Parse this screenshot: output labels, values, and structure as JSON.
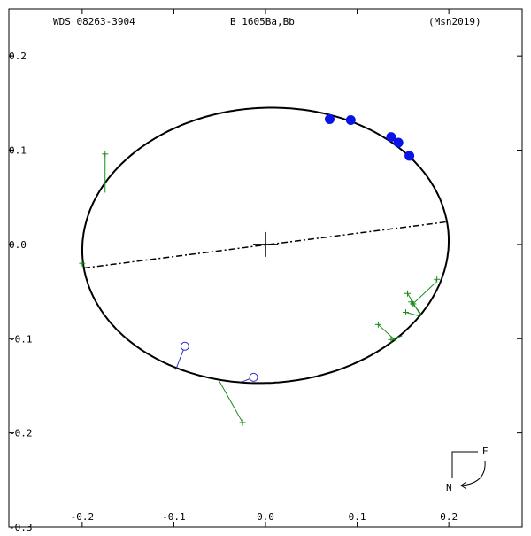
{
  "header": {
    "left": "WDS 08263-3904",
    "center": "B  1605Ba,Bb",
    "right": "(Msn2019)"
  },
  "compass": {
    "east": "E",
    "north": "N"
  },
  "colors": {
    "orbit": "#000000",
    "filled": "#0a14e6",
    "open": "#2b2bbf",
    "plus": "#1a8c1a"
  },
  "chart_data": {
    "type": "scatter",
    "title": "",
    "xlabel": "",
    "ylabel": "",
    "xlim": [
      -0.28,
      0.28
    ],
    "ylim": [
      -0.3,
      0.25
    ],
    "x_ticks": [
      {
        "v": -0.2,
        "label": "-0.2"
      },
      {
        "v": -0.1,
        "label": "-0.1"
      },
      {
        "v": 0.0,
        "label": "0.0"
      },
      {
        "v": 0.1,
        "label": "0.1"
      },
      {
        "v": 0.2,
        "label": "0.2"
      }
    ],
    "y_ticks": [
      {
        "v": 0.2,
        "label": "0.2"
      },
      {
        "v": 0.1,
        "label": "0.1"
      },
      {
        "v": 0.0,
        "label": "0.0"
      },
      {
        "v": -0.1,
        "label": "-0.1"
      },
      {
        "v": -0.2,
        "label": "-0.2"
      },
      {
        "v": -0.3,
        "label": "-0.3"
      }
    ],
    "orbit": {
      "center": [
        0.0,
        -0.001
      ],
      "semi_major": 0.2,
      "semi_minor": 0.146,
      "angle_deg": 3
    },
    "line_of_nodes": [
      [
        -0.198,
        -0.025
      ],
      [
        0.198,
        0.024
      ]
    ],
    "primary": [
      0.0,
      0.0
    ],
    "series": [
      {
        "marker": "filled-circle",
        "points": [
          [
            0.07,
            0.133
          ],
          [
            0.093,
            0.132
          ],
          [
            0.137,
            0.114
          ],
          [
            0.145,
            0.108
          ],
          [
            0.157,
            0.094
          ]
        ]
      },
      {
        "marker": "open-circle",
        "points": [
          {
            "obs": [
              -0.088,
              -0.108
            ],
            "orbit": [
              -0.098,
              -0.133
            ]
          },
          {
            "obs": [
              -0.013,
              -0.141
            ],
            "orbit": [
              -0.026,
              -0.146
            ]
          }
        ]
      },
      {
        "marker": "plus",
        "points": [
          {
            "obs": [
              -0.175,
              0.096
            ],
            "orbit": [
              -0.175,
              0.055
            ]
          },
          {
            "obs": [
              -0.2,
              -0.02
            ],
            "orbit": [
              -0.199,
              -0.024
            ]
          },
          {
            "obs": [
              -0.025,
              -0.189
            ],
            "orbit": [
              -0.051,
              -0.144
            ]
          },
          {
            "obs": [
              0.187,
              -0.037
            ],
            "orbit": [
              0.186,
              -0.039
            ]
          },
          {
            "obs": [
              0.155,
              -0.052
            ],
            "orbit": [
              0.169,
              -0.075
            ]
          },
          {
            "obs": [
              0.159,
              -0.061
            ],
            "orbit": [
              0.17,
              -0.074
            ]
          },
          {
            "obs": [
              0.161,
              -0.063
            ],
            "orbit": [
              0.186,
              -0.04
            ]
          },
          {
            "obs": [
              0.153,
              -0.072
            ],
            "orbit": [
              0.168,
              -0.076
            ]
          },
          {
            "obs": [
              0.123,
              -0.085
            ],
            "orbit": [
              0.143,
              -0.103
            ]
          },
          {
            "obs": [
              0.137,
              -0.101
            ],
            "orbit": [
              0.149,
              -0.097
            ]
          }
        ]
      }
    ]
  }
}
